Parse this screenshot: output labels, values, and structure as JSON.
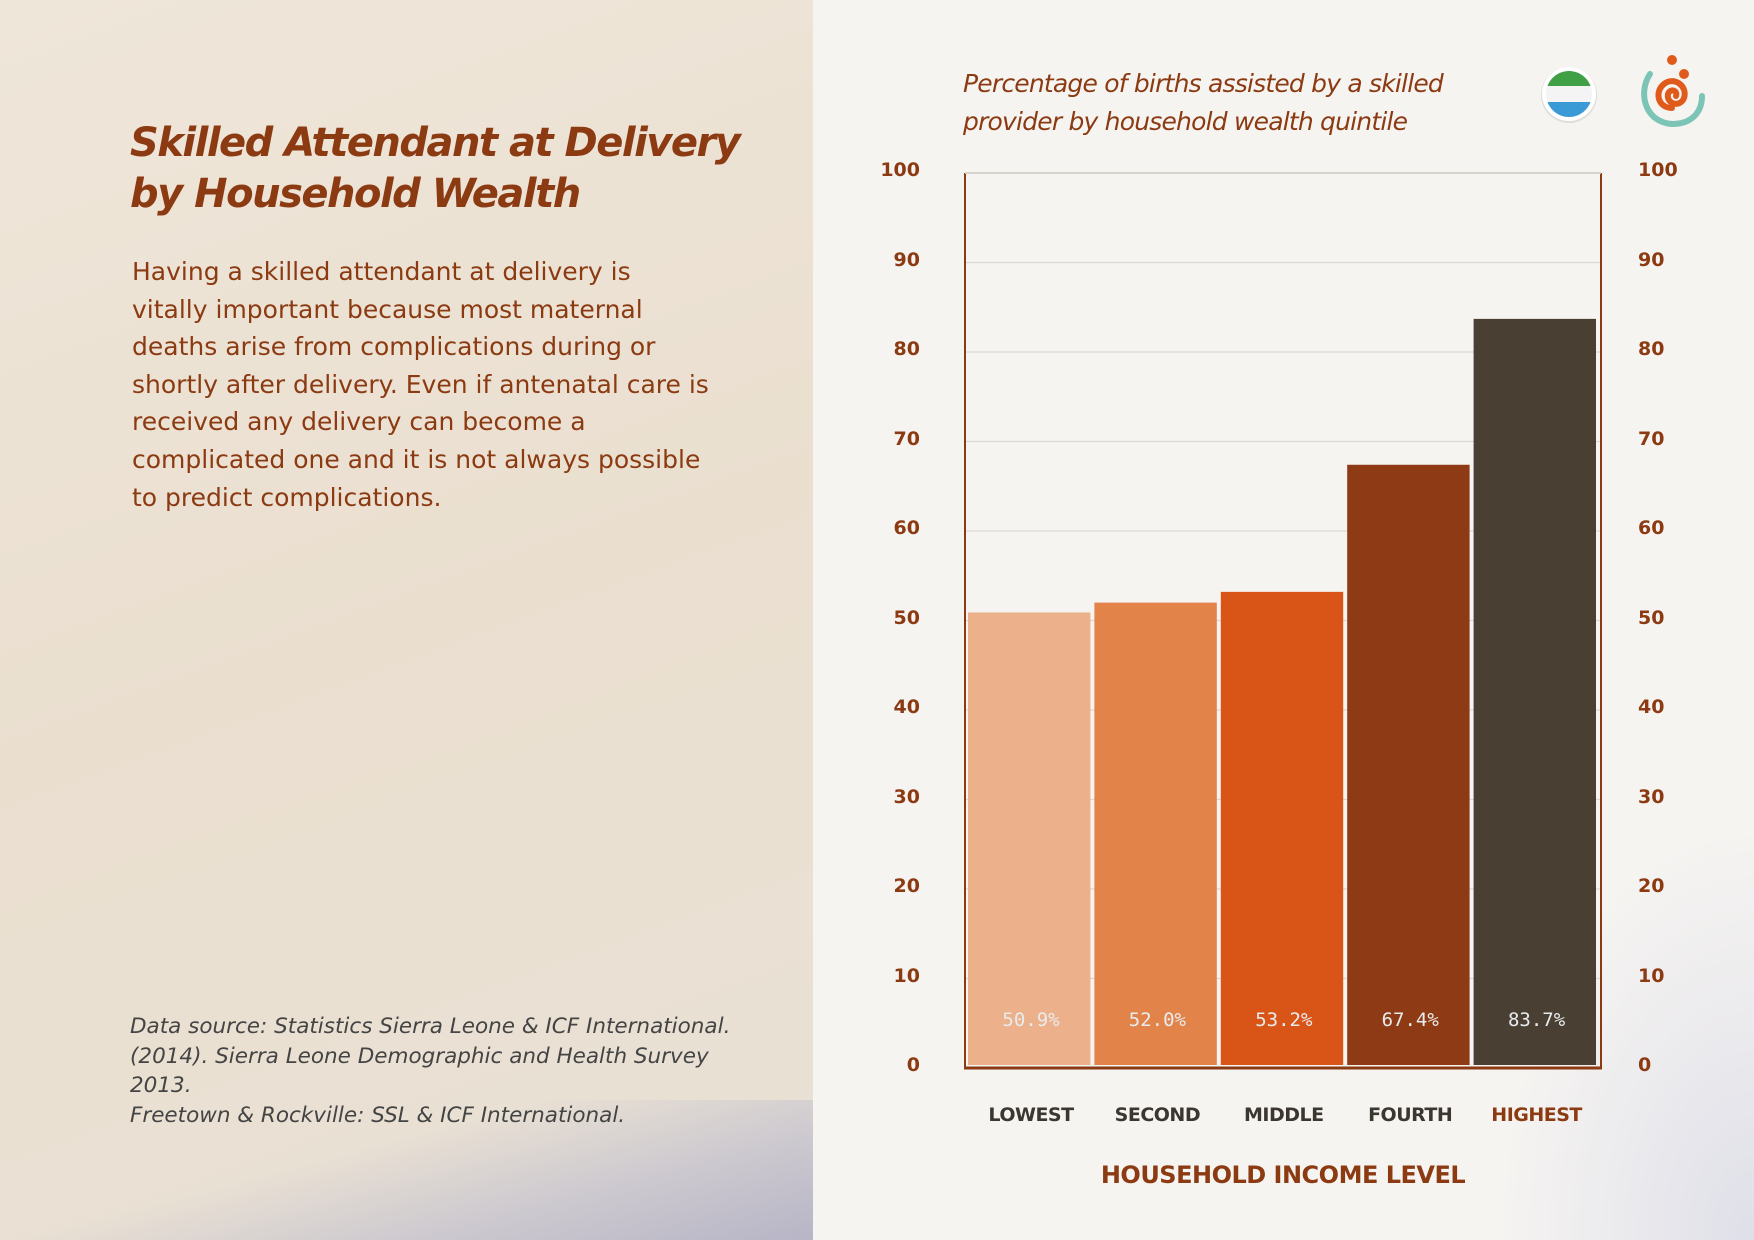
{
  "left_panel": {
    "title_line1": "Skilled Attendant at Delivery",
    "title_line2": "by Household Wealth",
    "body": "Having a skilled attendant at delivery is vitally important because most maternal deaths arise from complications during or shortly after delivery. Even if antenatal care is received any delivery can become a complicated one and it is not always possible to predict complications.",
    "source_line1": "Data source: Statistics Sierra Leone & ICF International.",
    "source_line2": "(2014). Sierra Leone Demographic and Health Survey 2013.",
    "source_line3": "Freetown & Rockville: SSL & ICF International."
  },
  "icons": {
    "flag": "sierra-leone-flag-icon",
    "logo": "spiral-logo-icon"
  },
  "chart_data": {
    "type": "bar",
    "title_line1": "Percentage of births assisted by a skilled",
    "title_line2": "provider by household wealth quintile",
    "categories": [
      "LOWEST",
      "SECOND",
      "MIDDLE",
      "FOURTH",
      "HIGHEST"
    ],
    "values": [
      50.9,
      52.0,
      53.2,
      67.4,
      83.7
    ],
    "value_labels": [
      "50.9%",
      "52.0%",
      "53.2%",
      "67.4%",
      "83.7%"
    ],
    "colors": [
      "#ecb08a",
      "#e2834a",
      "#d85517",
      "#8e3a15",
      "#4a3f33"
    ],
    "xlabel": "HOUSEHOLD  INCOME LEVEL",
    "ylabel": "",
    "ylim": [
      0,
      100
    ],
    "yticks": [
      "0",
      "10",
      "20",
      "30",
      "40",
      "50",
      "60",
      "70",
      "80",
      "90",
      "100"
    ],
    "grid": true,
    "accent": "#8b3a12"
  }
}
